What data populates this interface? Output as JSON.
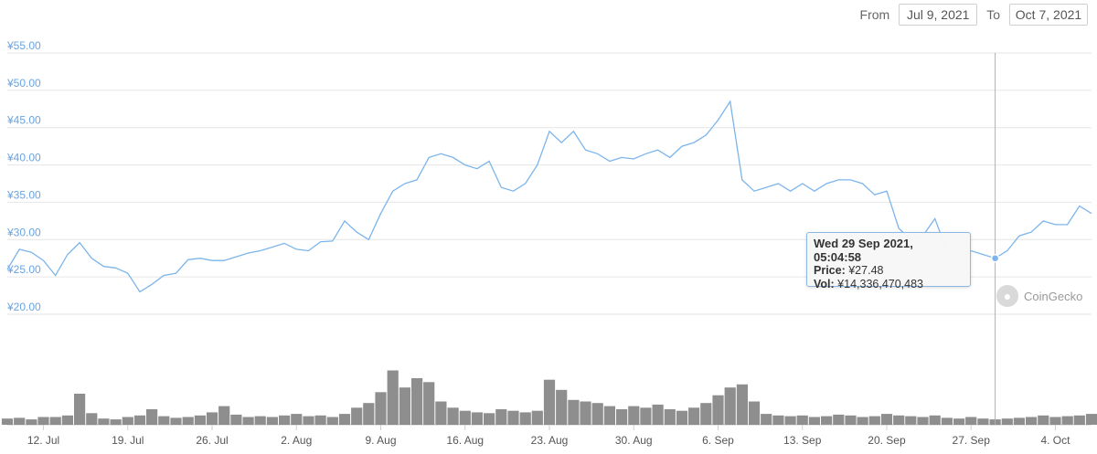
{
  "range": {
    "from_label": "From",
    "from_value": "Jul 9, 2021",
    "to_label": "To",
    "to_value": "Oct 7, 2021"
  },
  "tooltip": {
    "title": "Wed 29 Sep 2021, 05:04:58",
    "price_label": "Price:",
    "price_value": "¥27.48",
    "vol_label": "Vol:",
    "vol_value": "¥14,336,470,483"
  },
  "credit": {
    "text": "CoinGecko"
  },
  "colors": {
    "line": "#7cb5ec",
    "volume": "#7a7a7a",
    "grid": "#e6e6e6",
    "axis_label": "#6aa4e0"
  },
  "chart_data": {
    "type": "line",
    "ylim": [
      20,
      55
    ],
    "y_ticks": [
      "¥20.00",
      "¥25.00",
      "¥30.00",
      "¥35.00",
      "¥40.00",
      "¥45.00",
      "¥50.00",
      "¥55.00"
    ],
    "y_tick_values": [
      20,
      25,
      30,
      35,
      40,
      45,
      50,
      55
    ],
    "x_range": [
      "2021-07-09",
      "2021-10-07"
    ],
    "x_ticks": [
      "12. Jul",
      "19. Jul",
      "26. Jul",
      "2. Aug",
      "9. Aug",
      "16. Aug",
      "23. Aug",
      "30. Aug",
      "6. Sep",
      "13. Sep",
      "20. Sep",
      "27. Sep",
      "4. Oct"
    ],
    "x_tick_dates": [
      "2021-07-12",
      "2021-07-19",
      "2021-07-26",
      "2021-08-02",
      "2021-08-09",
      "2021-08-16",
      "2021-08-23",
      "2021-08-30",
      "2021-09-06",
      "2021-09-13",
      "2021-09-20",
      "2021-09-27",
      "2021-10-04"
    ],
    "grid": true,
    "legend": "none",
    "series": [
      {
        "x": [
          "2021-07-09",
          "2021-07-10",
          "2021-07-11",
          "2021-07-12",
          "2021-07-13",
          "2021-07-14",
          "2021-07-15",
          "2021-07-16",
          "2021-07-17",
          "2021-07-18",
          "2021-07-19",
          "2021-07-20",
          "2021-07-21",
          "2021-07-22",
          "2021-07-23",
          "2021-07-24",
          "2021-07-25",
          "2021-07-26",
          "2021-07-27",
          "2021-07-28",
          "2021-07-29",
          "2021-07-30",
          "2021-07-31",
          "2021-08-01",
          "2021-08-02",
          "2021-08-03",
          "2021-08-04",
          "2021-08-05",
          "2021-08-06",
          "2021-08-07",
          "2021-08-08",
          "2021-08-09",
          "2021-08-10",
          "2021-08-11",
          "2021-08-12",
          "2021-08-13",
          "2021-08-14",
          "2021-08-15",
          "2021-08-16",
          "2021-08-17",
          "2021-08-18",
          "2021-08-19",
          "2021-08-20",
          "2021-08-21",
          "2021-08-22",
          "2021-08-23",
          "2021-08-24",
          "2021-08-25",
          "2021-08-26",
          "2021-08-27",
          "2021-08-28",
          "2021-08-29",
          "2021-08-30",
          "2021-08-31",
          "2021-09-01",
          "2021-09-02",
          "2021-09-03",
          "2021-09-04",
          "2021-09-05",
          "2021-09-06",
          "2021-09-07",
          "2021-09-08",
          "2021-09-09",
          "2021-09-10",
          "2021-09-11",
          "2021-09-12",
          "2021-09-13",
          "2021-09-14",
          "2021-09-15",
          "2021-09-16",
          "2021-09-17",
          "2021-09-18",
          "2021-09-19",
          "2021-09-20",
          "2021-09-21",
          "2021-09-22",
          "2021-09-23",
          "2021-09-24",
          "2021-09-25",
          "2021-09-26",
          "2021-09-27",
          "2021-09-28",
          "2021-09-29",
          "2021-09-30",
          "2021-10-01",
          "2021-10-02",
          "2021-10-03",
          "2021-10-04",
          "2021-10-05",
          "2021-10-06",
          "2021-10-07"
        ],
        "values": [
          26.0,
          28.7,
          28.3,
          27.2,
          25.2,
          28.0,
          29.6,
          27.5,
          26.4,
          26.2,
          25.5,
          23.0,
          24.0,
          25.2,
          25.5,
          27.3,
          27.5,
          27.2,
          27.2,
          27.7,
          28.2,
          28.5,
          29.0,
          29.5,
          28.7,
          28.5,
          29.7,
          29.8,
          32.5,
          31.0,
          30.0,
          33.5,
          36.5,
          37.5,
          38.0,
          41.0,
          41.5,
          41.0,
          40.0,
          39.5,
          40.5,
          37.0,
          36.5,
          37.5,
          40.0,
          44.5,
          43.0,
          44.5,
          42.0,
          41.5,
          40.5,
          41.0,
          40.8,
          41.5,
          42.0,
          41.0,
          42.5,
          43.0,
          44.0,
          46.0,
          48.5,
          38.0,
          36.5,
          37.0,
          37.5,
          36.5,
          37.5,
          36.5,
          37.5,
          38.0,
          38.0,
          37.5,
          36.0,
          36.5,
          31.5,
          30.0,
          30.5,
          32.8,
          28.5,
          28.0,
          28.5,
          28.0,
          27.5,
          28.5,
          30.5,
          31.0,
          32.5,
          32.0,
          32.0,
          34.5,
          33.5
        ]
      }
    ],
    "volume": {
      "ylim": [
        0,
        100
      ],
      "values": [
        8,
        9,
        7,
        10,
        10,
        12,
        40,
        15,
        8,
        7,
        10,
        12,
        20,
        11,
        9,
        10,
        12,
        16,
        24,
        13,
        10,
        11,
        10,
        12,
        14,
        11,
        12,
        10,
        14,
        22,
        28,
        42,
        70,
        48,
        60,
        55,
        30,
        22,
        18,
        16,
        15,
        20,
        18,
        16,
        18,
        58,
        45,
        32,
        30,
        28,
        24,
        20,
        24,
        22,
        26,
        20,
        18,
        22,
        28,
        38,
        48,
        52,
        30,
        14,
        12,
        11,
        12,
        10,
        11,
        13,
        12,
        10,
        11,
        14,
        12,
        11,
        10,
        12,
        9,
        8,
        10,
        8,
        7,
        8,
        9,
        10,
        12,
        10,
        11,
        12,
        14
      ]
    }
  }
}
